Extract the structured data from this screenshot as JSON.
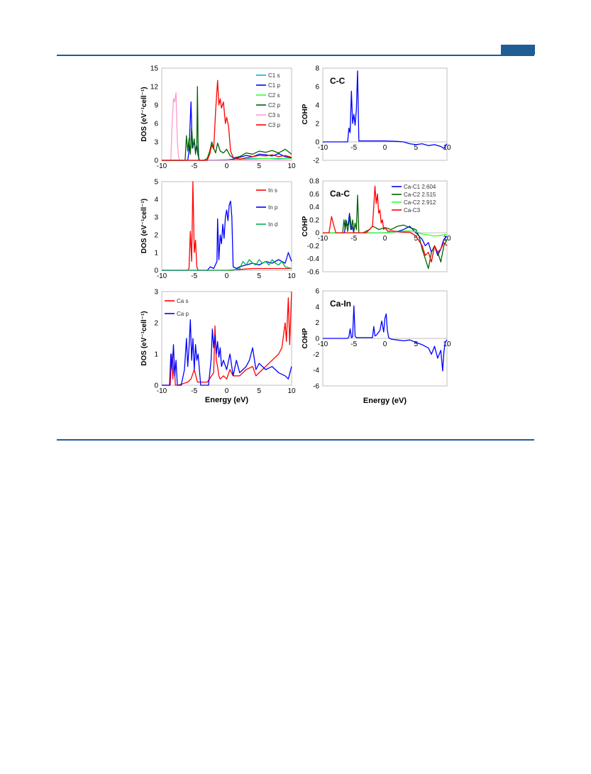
{
  "chart_data": [
    {
      "type": "line",
      "ylabel": "DOS (eV⁻¹cell⁻¹)",
      "xlabel": "",
      "xlim": [
        -10,
        10
      ],
      "ylim": [
        0,
        15
      ],
      "xticks": [
        "-10",
        "-5",
        "0",
        "5",
        "10"
      ],
      "yticks": [
        "0",
        "3",
        "6",
        "9",
        "12",
        "15"
      ],
      "legend_position": "top-right",
      "series": [
        {
          "name": "C1 s",
          "color": "#00b0f0",
          "x": [
            -10,
            -5,
            -2,
            0,
            2,
            4,
            6,
            8,
            10
          ],
          "y": [
            0,
            0,
            0.05,
            0.1,
            0.2,
            0.3,
            0.3,
            0.3,
            0.3
          ]
        },
        {
          "name": "C1 p",
          "color": "#0000ff",
          "x": [
            -10,
            -6,
            -5.8,
            -5.5,
            -5.3,
            -5.0,
            -4.8,
            -4.6,
            -4.4,
            -4.2,
            -3.5,
            -2,
            0,
            1,
            2,
            3,
            4,
            5,
            6,
            7,
            8,
            9,
            10
          ],
          "y": [
            0,
            0,
            1.5,
            9.5,
            2.0,
            3.0,
            1.5,
            2.5,
            0.8,
            0,
            0,
            0,
            0,
            0.2,
            0.5,
            0.8,
            0.6,
            1.0,
            0.9,
            0.7,
            1.1,
            0.6,
            0.4
          ]
        },
        {
          "name": "C2 s",
          "color": "#33ff33",
          "x": [
            -10,
            -5,
            0,
            2,
            4,
            6,
            8,
            10
          ],
          "y": [
            0,
            0,
            0,
            0.1,
            0.2,
            0.3,
            0.2,
            0.3
          ]
        },
        {
          "name": "C2 p",
          "color": "#006400",
          "x": [
            -10,
            -6.4,
            -6.2,
            -6.0,
            -5.8,
            -5.6,
            -5.4,
            -5.2,
            -5.0,
            -4.8,
            -4.6,
            -4.5,
            -4.4,
            -4.3,
            -3.5,
            -3.0,
            -2.6,
            -2.3,
            -2.0,
            -1.7,
            -1.4,
            -1.0,
            -0.5,
            0,
            0.5,
            1,
            2,
            3,
            4,
            5,
            6,
            7,
            8,
            9,
            10
          ],
          "y": [
            0,
            0,
            4.0,
            1.5,
            3.5,
            1.0,
            5.5,
            2.0,
            3.5,
            1.0,
            2.5,
            12.0,
            3.0,
            0,
            0,
            0.3,
            1.5,
            3.0,
            2.0,
            1.2,
            2.8,
            1.5,
            1.2,
            1.8,
            0.8,
            0.4,
            0.6,
            1.2,
            1.0,
            1.5,
            1.3,
            1.6,
            1.2,
            1.8,
            1.0
          ]
        },
        {
          "name": "C3 s",
          "color": "#ff99cc",
          "x": [
            -10,
            -8.6,
            -8.4,
            -8.2,
            -8.0,
            -7.8,
            -7.6,
            -7.4,
            -7.2,
            -5,
            0,
            10
          ],
          "y": [
            0,
            0,
            6.0,
            10.0,
            9.5,
            11.0,
            3.0,
            0.5,
            0,
            0,
            0,
            0
          ]
        },
        {
          "name": "C3 p",
          "color": "#ff0000",
          "x": [
            -10,
            -3.0,
            -2.6,
            -2.3,
            -2.0,
            -1.7,
            -1.4,
            -1.2,
            -1.0,
            -0.8,
            -0.5,
            -0.2,
            0,
            0.3,
            0.6,
            1.0,
            1.5,
            2,
            3,
            4,
            5,
            6,
            7,
            8,
            9,
            10
          ],
          "y": [
            0,
            0,
            1.0,
            2.5,
            1.8,
            8.0,
            13.0,
            9.0,
            10.0,
            8.5,
            9.5,
            6.0,
            7.0,
            5.5,
            1.5,
            0.5,
            0.3,
            0.2,
            0.4,
            0.6,
            0.8,
            0.7,
            0.9,
            0.6,
            0.8,
            0.5
          ]
        }
      ]
    },
    {
      "type": "line",
      "ylabel": "DOS (eV⁻¹cell⁻¹)",
      "xlabel": "",
      "xlim": [
        -10,
        10
      ],
      "ylim": [
        0,
        5
      ],
      "xticks": [
        "-10",
        "-5",
        "0",
        "5",
        "10"
      ],
      "yticks": [
        "0",
        "1",
        "2",
        "3",
        "4",
        "5"
      ],
      "legend_position": "top-right",
      "series": [
        {
          "name": "In s",
          "color": "#ff0000",
          "x": [
            -10,
            -6.0,
            -5.8,
            -5.6,
            -5.4,
            -5.2,
            -5.0,
            -4.8,
            -4.6,
            -4.4,
            -3,
            0,
            2,
            4,
            6,
            8,
            10
          ],
          "y": [
            0,
            0,
            0.1,
            2.2,
            0.5,
            5.0,
            1.0,
            1.7,
            0.2,
            0,
            0,
            0,
            0.05,
            0.1,
            0.1,
            0.1,
            0.1
          ]
        },
        {
          "name": "In p",
          "color": "#0000ff",
          "x": [
            -10,
            -3.0,
            -2.5,
            -2.0,
            -1.5,
            -1.4,
            -1.2,
            -1.0,
            -0.8,
            -0.6,
            -0.4,
            -0.2,
            0,
            0.2,
            0.4,
            0.6,
            0.8,
            1.0,
            1.5,
            2,
            3,
            4,
            5,
            6,
            7,
            8,
            9,
            9.5,
            10
          ],
          "y": [
            0,
            0,
            0.2,
            0.1,
            0.5,
            2.9,
            0.6,
            2.0,
            1.5,
            2.6,
            1.8,
            3.0,
            3.4,
            2.8,
            3.7,
            3.9,
            3.0,
            0.2,
            0.1,
            0.2,
            0.3,
            0.4,
            0.3,
            0.5,
            0.4,
            0.6,
            0.4,
            1.0,
            0.5
          ]
        },
        {
          "name": "In d",
          "color": "#00b050",
          "x": [
            -10,
            0,
            1,
            2,
            2.5,
            3,
            3.5,
            4,
            4.5,
            5,
            5.5,
            6,
            6.5,
            7,
            7.5,
            8,
            8.5,
            9,
            10
          ],
          "y": [
            0,
            0,
            0,
            0.1,
            0.5,
            0.3,
            0.6,
            0.4,
            0.3,
            0.6,
            0.4,
            0.5,
            0.3,
            0.6,
            0.4,
            0.3,
            0.5,
            0.2,
            0.1
          ]
        }
      ]
    },
    {
      "type": "line",
      "ylabel": "DOS (eV⁻¹cell⁻¹)",
      "xlabel": "Energy (eV)",
      "xlim": [
        -10,
        10
      ],
      "ylim": [
        0,
        3
      ],
      "xticks": [
        "-10",
        "-5",
        "0",
        "5",
        "10"
      ],
      "yticks": [
        "0",
        "1",
        "2",
        "3"
      ],
      "legend_position": "top-left",
      "series": [
        {
          "name": "Ca s",
          "color": "#ff0000",
          "x": [
            -10,
            -8.7,
            -8.5,
            -8.3,
            -8.1,
            -7.9,
            -7.5,
            -6,
            -5.5,
            -5.0,
            -4.5,
            -3,
            -2.0,
            -1.8,
            -1.6,
            -1.4,
            -1.2,
            -1.0,
            -0.5,
            0,
            0.5,
            1,
            2,
            3,
            4,
            4.5,
            5,
            5.5,
            6,
            7,
            8,
            8.5,
            9,
            9.2,
            9.5,
            9.7,
            10
          ],
          "y": [
            0,
            0,
            1.0,
            0.2,
            0.8,
            0,
            0,
            0.1,
            0.2,
            0.5,
            0.1,
            0.1,
            0.4,
            1.9,
            0.8,
            0.6,
            0.3,
            0.2,
            0.3,
            0.2,
            0.5,
            0.3,
            0.3,
            0.5,
            0.6,
            0.3,
            0.4,
            0.5,
            0.6,
            0.8,
            1.0,
            1.2,
            2.0,
            1.4,
            2.8,
            1.3,
            3.0
          ]
        },
        {
          "name": "Ca p",
          "color": "#0000ff",
          "x": [
            -10,
            -8.8,
            -8.6,
            -8.4,
            -8.2,
            -8.0,
            -7.8,
            -7.6,
            -7.0,
            -6.5,
            -6.2,
            -6.0,
            -5.8,
            -5.6,
            -5.4,
            -5.2,
            -5.0,
            -4.8,
            -4.6,
            -4.4,
            -4.0,
            -3.5,
            -2.8,
            -2.4,
            -2.2,
            -2.0,
            -1.8,
            -1.6,
            -1.4,
            -1.2,
            -1.0,
            -0.8,
            -0.5,
            0,
            0.5,
            1,
            1.5,
            2,
            3,
            3.5,
            4,
            4.5,
            5,
            6,
            7,
            8,
            9,
            9.5,
            10
          ],
          "y": [
            0,
            0,
            1.0,
            0.5,
            1.3,
            0.3,
            0.8,
            0,
            0,
            0.5,
            1.5,
            0.6,
            1.2,
            2.1,
            0.8,
            1.5,
            0.5,
            1.3,
            0.8,
            1.0,
            0,
            0,
            0,
            0.8,
            1.8,
            1.2,
            1.6,
            1.0,
            1.4,
            0.9,
            1.2,
            0.6,
            0.8,
            0.5,
            1.0,
            0.3,
            0.8,
            0.4,
            0.6,
            0.8,
            1.2,
            0.5,
            0.7,
            0.5,
            0.6,
            0.4,
            0.3,
            0.2,
            0.6
          ]
        }
      ]
    },
    {
      "type": "line",
      "title": "C-C",
      "ylabel": "COHP",
      "xlabel": "",
      "xlim": [
        -10,
        10
      ],
      "ylim": [
        -2,
        8
      ],
      "xticks": [
        "-10",
        "-5",
        "0",
        "5",
        "10"
      ],
      "yticks": [
        "-2",
        "0",
        "2",
        "4",
        "6",
        "8"
      ],
      "series": [
        {
          "name": "",
          "color": "#0000ff",
          "x": [
            -10,
            -6.0,
            -5.8,
            -5.6,
            -5.4,
            -5.2,
            -5.0,
            -4.8,
            -4.6,
            -4.4,
            -4.2,
            -3,
            0,
            2,
            3,
            4,
            5,
            6,
            7,
            8,
            9,
            9.5,
            10
          ],
          "y": [
            0,
            0,
            1.5,
            1.0,
            5.5,
            2.0,
            3.0,
            1.8,
            3.5,
            7.7,
            0.1,
            0.1,
            0.1,
            0.05,
            0,
            -0.2,
            -0.3,
            -0.2,
            -0.4,
            -0.3,
            -0.5,
            -0.7,
            -0.2
          ]
        }
      ]
    },
    {
      "type": "line",
      "title": "Ca-C",
      "ylabel": "COHP",
      "xlabel": "",
      "xlim": [
        -10,
        10
      ],
      "ylim": [
        -0.6,
        0.8
      ],
      "xticks": [
        "-10",
        "-5",
        "0",
        "5",
        "10"
      ],
      "yticks": [
        "-0.6",
        "-0.4",
        "-0.2",
        "0",
        "0.2",
        "0.4",
        "0.6",
        "0.8"
      ],
      "legend_position": "top-right",
      "series": [
        {
          "name": "Ca-C1 2.604",
          "color": "#0000ff",
          "x": [
            -10,
            -6.5,
            -6.3,
            -6.1,
            -5.9,
            -5.7,
            -5.5,
            -5.3,
            -5.0,
            -4.5,
            -3,
            0,
            2,
            3,
            4,
            5,
            6,
            6.5,
            7,
            7.5,
            8,
            8.5,
            9,
            9.5,
            10
          ],
          "y": [
            0,
            0,
            0.2,
            0.1,
            0.15,
            0.3,
            0.05,
            0.1,
            0,
            0,
            0,
            0,
            0.02,
            0.05,
            0.1,
            0,
            -0.1,
            -0.2,
            -0.15,
            -0.3,
            -0.2,
            -0.35,
            -0.25,
            -0.1,
            -0.05
          ]
        },
        {
          "name": "Ca-C2 2.515",
          "color": "#006400",
          "x": [
            -10,
            -6.8,
            -6.6,
            -6.4,
            -6.2,
            -6.0,
            -5.8,
            -5.6,
            -5.4,
            -5.2,
            -5.0,
            -4.8,
            -4.6,
            -4.4,
            -4.2,
            -3.5,
            -2.5,
            -2.0,
            -1.5,
            -1.0,
            0,
            1,
            2,
            3,
            4,
            5,
            5.5,
            6,
            6.5,
            7,
            7.5,
            8,
            8.5,
            9,
            9.5,
            10
          ],
          "y": [
            0,
            0,
            0.2,
            0.05,
            0.18,
            0.02,
            0.15,
            0.25,
            0.05,
            0.2,
            0.02,
            0.15,
            0.05,
            0.58,
            0,
            0,
            0.05,
            0.1,
            0.08,
            0.05,
            0.08,
            0.05,
            0.1,
            0.12,
            0.08,
            0.05,
            -0.05,
            -0.25,
            -0.4,
            -0.55,
            -0.3,
            -0.2,
            -0.3,
            -0.45,
            -0.2,
            -0.1
          ]
        },
        {
          "name": "Ca-C2 2.912",
          "color": "#33ff33",
          "x": [
            -10,
            -5,
            0,
            2,
            4,
            5,
            6,
            7,
            8,
            9,
            10
          ],
          "y": [
            0,
            0,
            0,
            0.02,
            0.03,
            0.02,
            -0.02,
            -0.03,
            -0.05,
            -0.04,
            -0.02
          ]
        },
        {
          "name": "Ca-C3",
          "color": "#ff0000",
          "x": [
            -10,
            -9.0,
            -8.6,
            -8.2,
            -7.9,
            -7.5,
            -3,
            -2.5,
            -2.0,
            -1.8,
            -1.6,
            -1.4,
            -1.2,
            -1.0,
            -0.8,
            -0.6,
            -0.4,
            -0.2,
            0,
            0.5,
            1,
            2,
            3,
            4,
            5,
            6,
            6.5,
            7,
            7.5,
            8,
            8.5,
            9,
            9.5,
            10
          ],
          "y": [
            0,
            0,
            0.25,
            0.1,
            0,
            0,
            0,
            0.05,
            0.1,
            0.4,
            0.72,
            0.45,
            0.6,
            0.3,
            0.35,
            0.15,
            0.2,
            0.05,
            0.08,
            0.02,
            0.03,
            0.02,
            0.01,
            0.01,
            -0.05,
            -0.2,
            -0.35,
            -0.3,
            -0.45,
            -0.2,
            -0.3,
            -0.25,
            -0.15,
            -0.2
          ]
        }
      ]
    },
    {
      "type": "line",
      "title": "Ca-In",
      "ylabel": "COHP",
      "xlabel": "Energy (eV)",
      "xlim": [
        -10,
        10
      ],
      "ylim": [
        -6,
        6
      ],
      "xticks": [
        "-10",
        "-5",
        "0",
        "5",
        "10"
      ],
      "yticks": [
        "-6",
        "-4",
        "-2",
        "0",
        "2",
        "4",
        "6"
      ],
      "series": [
        {
          "name": "",
          "color": "#0000ff",
          "x": [
            -10,
            -6.0,
            -5.8,
            -5.6,
            -5.4,
            -5.2,
            -5.0,
            -4.8,
            -4.6,
            -3,
            -2.0,
            -1.8,
            -1.6,
            -1.4,
            -1.2,
            -1.0,
            -0.8,
            -0.5,
            -0.2,
            0,
            0.2,
            0.4,
            0.6,
            1.0,
            2,
            3,
            4,
            5,
            6,
            7,
            7.5,
            8,
            8.5,
            9,
            9.3,
            9.5,
            9.7,
            10
          ],
          "y": [
            0,
            0,
            0.2,
            1.2,
            0.1,
            0.2,
            4.1,
            0.3,
            0.1,
            0.1,
            0.1,
            1.5,
            0.3,
            0.4,
            0.6,
            0.8,
            1.0,
            2.2,
            0.8,
            2.5,
            3.1,
            1.0,
            0.1,
            -0.1,
            -0.2,
            -0.3,
            -0.2,
            -0.5,
            -0.8,
            -1.2,
            -2.0,
            -1.0,
            -2.5,
            -1.5,
            -4.1,
            -1.8,
            -0.5,
            -0.2
          ]
        }
      ]
    }
  ]
}
